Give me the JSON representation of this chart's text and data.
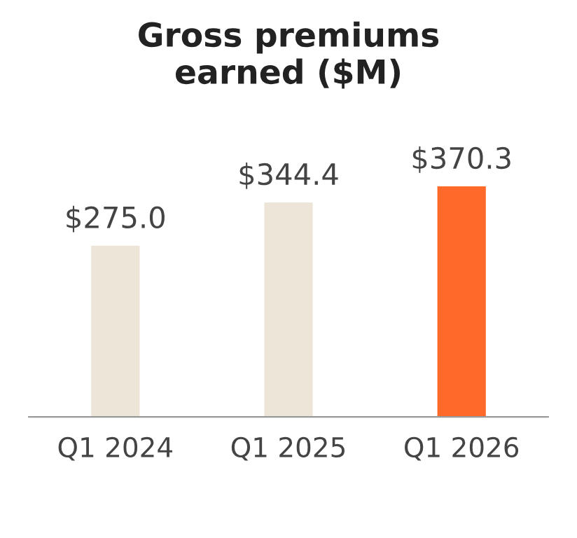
{
  "chart_data": {
    "type": "bar",
    "title": "Gross premiums\nearned ($M)",
    "categories": [
      "Q1 2024",
      "Q1 2025",
      "Q1 2026"
    ],
    "values": [
      275.0,
      344.4,
      370.3
    ],
    "colors": [
      "#ede5d8",
      "#ede5d8",
      "#ff6a2b"
    ],
    "value_labels": [
      "$275.0",
      "$344.4",
      "$370.3"
    ],
    "grid": false,
    "legend": false,
    "tick_labels": "x"
  }
}
